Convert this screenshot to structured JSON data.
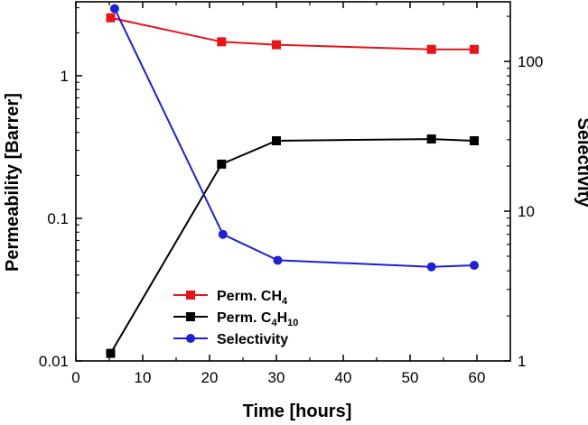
{
  "chart_data": {
    "type": "line",
    "xlabel": "Time [hours]",
    "ylabel_left": "Permeability [Barrer]",
    "ylabel_right": "Selectivity",
    "xlim": [
      0,
      65
    ],
    "x_ticks": [
      0,
      10,
      20,
      30,
      40,
      50,
      60
    ],
    "y_left_scale": "log",
    "y_left_lim": [
      0.01,
      3.3
    ],
    "y_left_ticks": [
      {
        "value": 0.01,
        "label": "0.01"
      },
      {
        "value": 0.1,
        "label": "0.1"
      },
      {
        "value": 1,
        "label": "1"
      }
    ],
    "y_right_scale": "log",
    "y_right_lim": [
      1,
      250
    ],
    "y_right_ticks": [
      {
        "value": 1,
        "label": "1"
      },
      {
        "value": 10,
        "label": "10"
      },
      {
        "value": 100,
        "label": "100"
      }
    ],
    "grid": false,
    "legend_position": "bottom-center",
    "series": [
      {
        "name": "Perm. CH",
        "name_sub": "4",
        "axis": "left",
        "color": "#e8141a",
        "marker": "square",
        "x": [
          5.2,
          21.8,
          30.0,
          53.2,
          59.6
        ],
        "y": [
          2.55,
          1.73,
          1.65,
          1.53,
          1.53
        ]
      },
      {
        "name": "Perm. C",
        "name_sub": "4",
        "name_mid": "H",
        "name_sub2": "10",
        "axis": "left",
        "color": "#000000",
        "marker": "square",
        "x": [
          5.2,
          21.8,
          30.0,
          53.2,
          59.6
        ],
        "y": [
          0.0113,
          0.24,
          0.35,
          0.36,
          0.35
        ]
      },
      {
        "name": "Selectivity",
        "axis": "right",
        "color": "#1f1fd8",
        "marker": "circle",
        "x": [
          5.8,
          22.0,
          30.2,
          53.2,
          59.6
        ],
        "y": [
          225,
          7.0,
          4.7,
          4.25,
          4.35
        ]
      }
    ]
  }
}
